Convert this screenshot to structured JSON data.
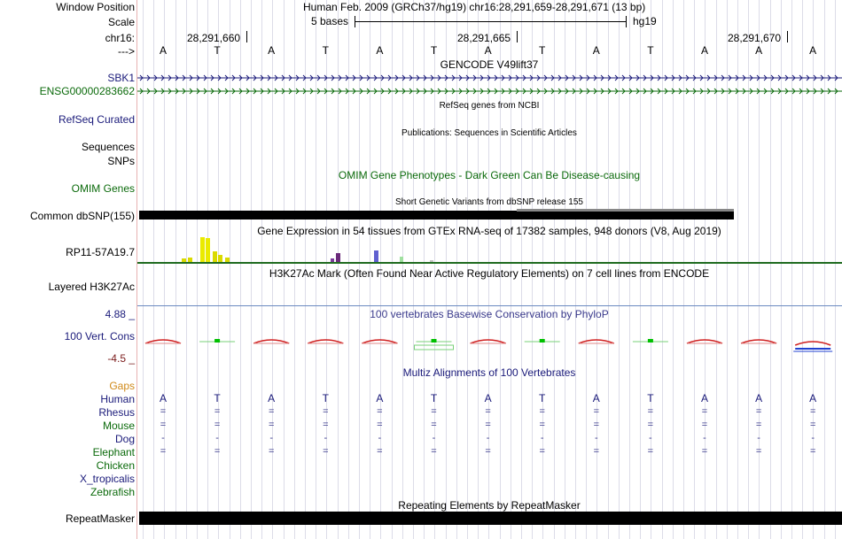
{
  "header": {
    "window_position_label": "Window Position",
    "window_position_value": "Human Feb. 2009 (GRCh37/hg19)   chr16:28,291,659-28,291,671 (13 bp)",
    "scale_label": "Scale",
    "scale_text": "5 bases",
    "scale_db": "hg19",
    "chrom_label": "chr16:",
    "coord_ticks": [
      "28,291,660",
      "28,291,665",
      "28,291,670"
    ],
    "strand_label": "--->",
    "bases": [
      "A",
      "T",
      "A",
      "T",
      "A",
      "T",
      "A",
      "T",
      "A",
      "T",
      "A",
      "A",
      "A"
    ]
  },
  "tracks": {
    "gencode_title": "GENCODE V49lift37",
    "gencode_genes": [
      "SBK1",
      "ENSG00000283662"
    ],
    "refseq_label": "RefSeq Curated",
    "refseq_title": "RefSeq genes from NCBI",
    "pubs_label": "Sequences",
    "pubs_title": "Publications: Sequences in Scientific Articles",
    "snps_label": "SNPs",
    "omim_label": "OMIM Genes",
    "omim_title": "OMIM Gene Phenotypes - Dark Green Can Be Disease-causing",
    "dbsnp_title": "Short Genetic Variants from dbSNP release 155",
    "dbsnp_label": "Common dbSNP(155)",
    "gtex_title": "Gene Expression in 54 tissues from GTEx RNA-seq of 17382 samples, 948 donors (V8, Aug 2019)",
    "gtex_label": "RP11-57A19.7",
    "h3k27ac_title": "H3K27Ac Mark (Often Found Near Active Regulatory Elements) on 7 cell lines from ENCODE",
    "h3k27ac_label": "Layered H3K27Ac",
    "phylop_title": "100 vertebrates Basewise Conservation by PhyloP",
    "phylop_max": "4.88 _",
    "phylop_label": "100 Vert. Cons",
    "phylop_min": "-4.5 _",
    "multiz_title": "Multiz Alignments of 100 Vertebrates",
    "gaps_label": "Gaps",
    "species": [
      {
        "name": "Human",
        "color": "#1a1a7a"
      },
      {
        "name": "Rhesus",
        "color": "#1a1a7a"
      },
      {
        "name": "Mouse",
        "color": "#0b6a0b"
      },
      {
        "name": "Dog",
        "color": "#1a1a7a"
      },
      {
        "name": "Elephant",
        "color": "#0b6a0b"
      },
      {
        "name": "Chicken",
        "color": "#0b6a0b"
      },
      {
        "name": "X_tropicalis",
        "color": "#1a1a7a"
      },
      {
        "name": "Zebrafish",
        "color": "#0b6a0b"
      }
    ],
    "align_rhesus": [
      "=",
      "=",
      "=",
      "=",
      "=",
      "=",
      "=",
      "=",
      "=",
      "=",
      "=",
      "=",
      "="
    ],
    "align_mouse": [
      "=",
      "=",
      "=",
      "=",
      "=",
      "=",
      "=",
      "=",
      "=",
      "=",
      "=",
      "=",
      "="
    ],
    "align_dog": [
      "-",
      "-",
      "-",
      "-",
      "-",
      "-",
      "-",
      "-",
      "-",
      "-",
      "-",
      "-",
      "-"
    ],
    "align_elephant": [
      "=",
      "=",
      "=",
      "=",
      "=",
      "=",
      "=",
      "=",
      "=",
      "=",
      "=",
      "=",
      "="
    ],
    "repeat_title": "Repeating Elements by RepeatMasker",
    "repeat_label": "RepeatMasker"
  },
  "colors": {
    "navy_label": "#1a1a7a",
    "green_label": "#0b6a0b",
    "gaps_orange": "#d08a1a",
    "phylop_max_color": "#1a1a7a",
    "phylop_min_color": "#7a1a1a"
  }
}
